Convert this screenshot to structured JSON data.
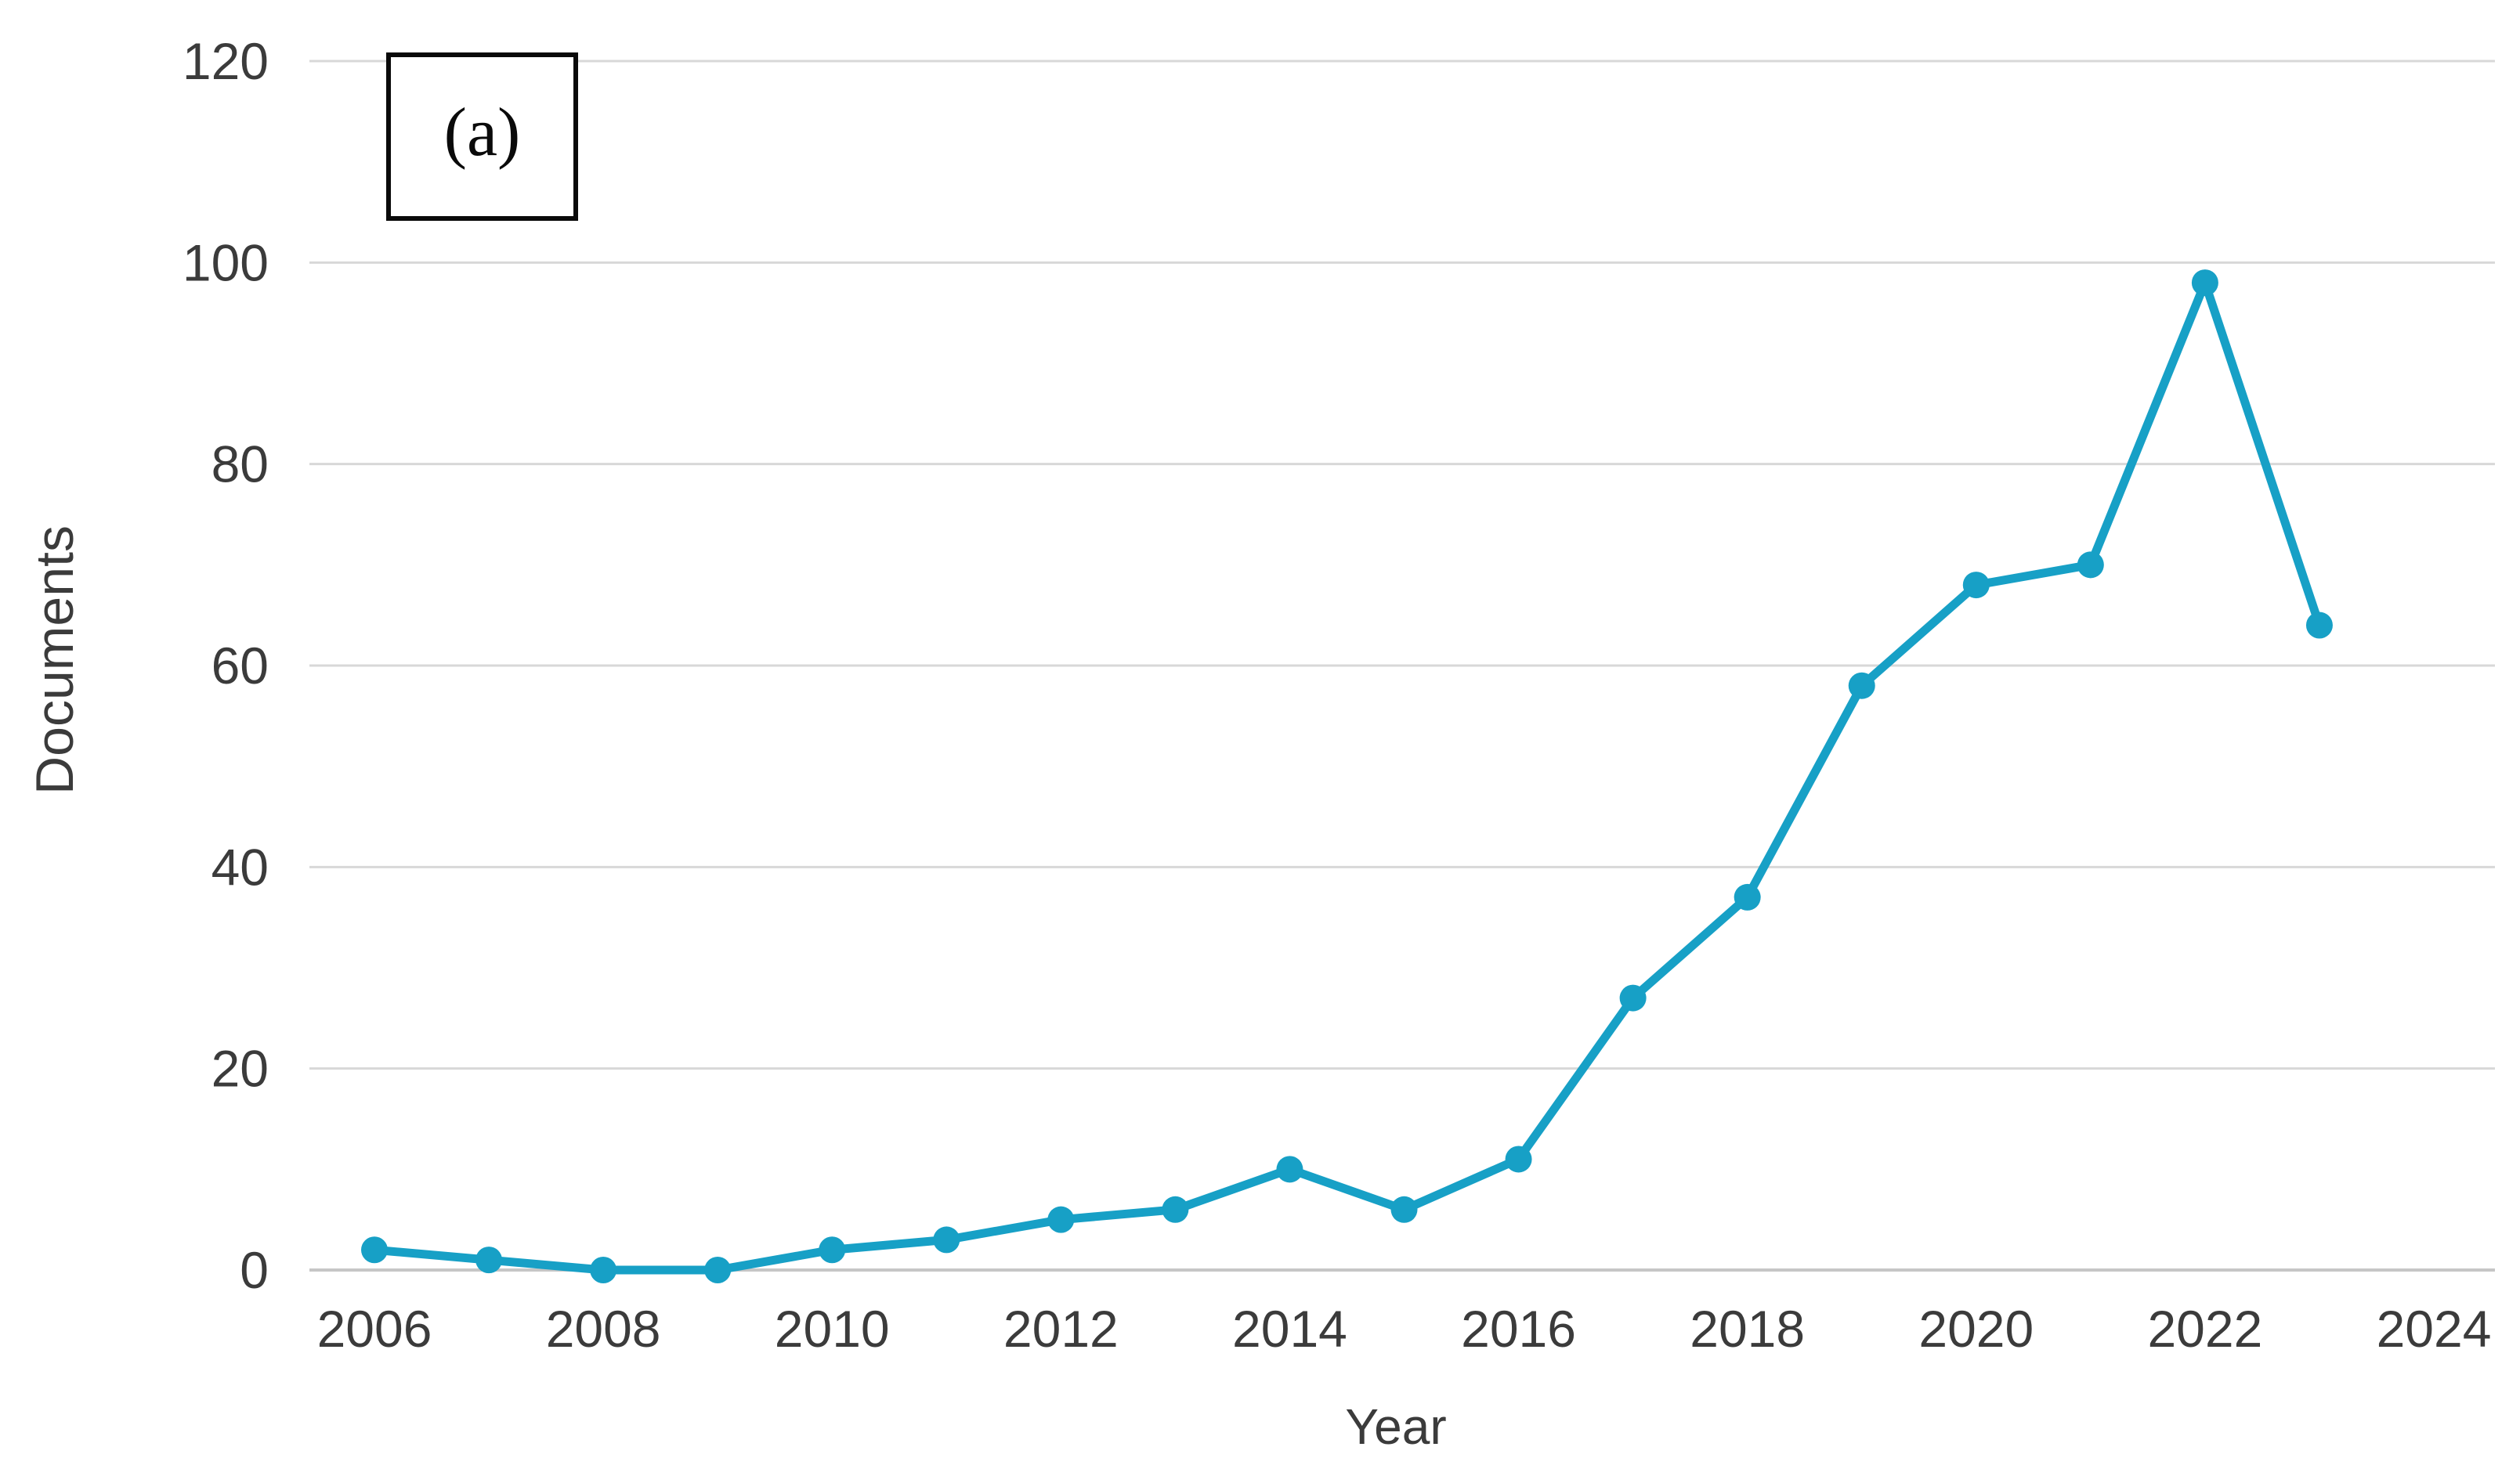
{
  "figure": {
    "panel_label": "(a)",
    "background": "#ffffff"
  },
  "chart_data": {
    "type": "line",
    "title": "",
    "xlabel": "Year",
    "ylabel": "Documents",
    "x": [
      2006,
      2007,
      2008,
      2009,
      2010,
      2011,
      2012,
      2013,
      2014,
      2015,
      2016,
      2017,
      2018,
      2019,
      2020,
      2021,
      2022,
      2023
    ],
    "values": [
      2,
      1,
      0,
      0,
      2,
      3,
      5,
      6,
      10,
      6,
      11,
      27,
      37,
      58,
      68,
      70,
      98,
      64
    ],
    "series_name": "Documents",
    "xlim": [
      2006,
      2024
    ],
    "ylim": [
      0,
      120
    ],
    "x_ticks": [
      2006,
      2008,
      2010,
      2012,
      2014,
      2016,
      2018,
      2020,
      2022,
      2024
    ],
    "y_ticks": [
      0,
      20,
      40,
      60,
      80,
      100,
      120
    ],
    "grid": "horizontal",
    "legend": "none",
    "marker": "circle"
  },
  "colors": {
    "accent": "#17a0c6",
    "text": "#3b3b3b",
    "grid": "#d8d8d8",
    "axis_line": "#c6c6c6",
    "box_border": "#0a0a0a"
  }
}
